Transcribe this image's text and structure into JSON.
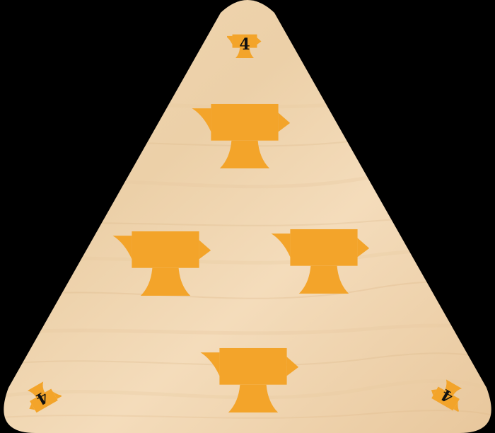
{
  "card": {
    "rank": "4",
    "suit": "anvil-icon",
    "pip_count": 4
  },
  "colors": {
    "background": "#000000",
    "wood_light": "#f5dcbc",
    "wood_mid": "#e9c9a0",
    "wood_dark": "#d9b383",
    "suit": "#f3a42a",
    "rank_text": "#111111"
  }
}
